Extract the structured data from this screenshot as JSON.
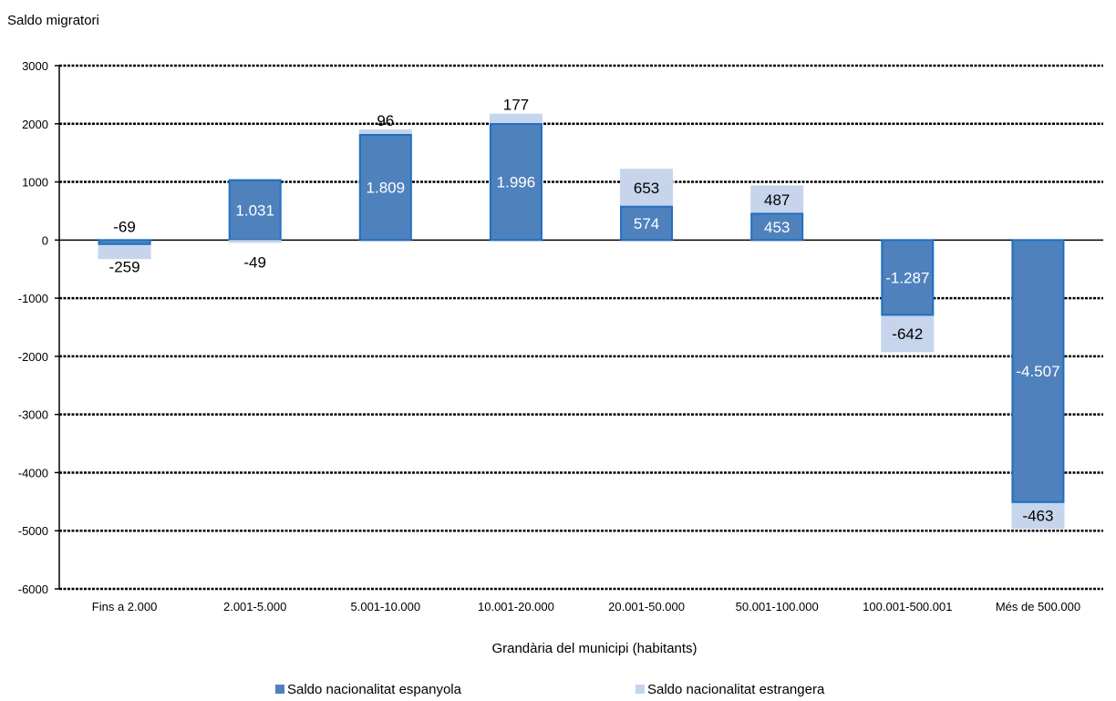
{
  "chart_data": {
    "type": "bar",
    "stacked": true,
    "ylabel": "Saldo migratori",
    "xlabel": "Grandària del municipi (habitants)",
    "ylim": [
      -6000,
      3000
    ],
    "yticks": [
      "3000",
      "2000",
      "1000",
      "0",
      "-1000",
      "-2000",
      "-3000",
      "-4000",
      "-5000",
      "-6000"
    ],
    "categories": [
      "Fins a 2.000",
      "2.001-5.000",
      "5.001-10.000",
      "10.001-20.000",
      "20.001-50.000",
      "50.001-100.000",
      "100.001-500.001",
      "Més de 500.000"
    ],
    "series": [
      {
        "name": "Saldo nacionalitat espanyola",
        "color": "#4f81bd",
        "border": "#1f6fc0",
        "label_color": "#ffffff",
        "values": [
          -69,
          1031,
          1809,
          1996,
          574,
          453,
          -1287,
          -4507
        ],
        "labels": [
          "-69",
          "1.031",
          "1.809",
          "1.996",
          "574",
          "453",
          "-1.287",
          "-4.507"
        ]
      },
      {
        "name": "Saldo nacionalitat estrangera",
        "color": "#c6d5ec",
        "label_color": "#000000",
        "values": [
          -259,
          -49,
          96,
          177,
          653,
          487,
          -642,
          -463
        ],
        "labels": [
          "-259",
          "-49",
          "96",
          "177",
          "653",
          "487",
          "-642",
          "-463"
        ]
      }
    ],
    "grid": true,
    "legend_position": "bottom"
  }
}
